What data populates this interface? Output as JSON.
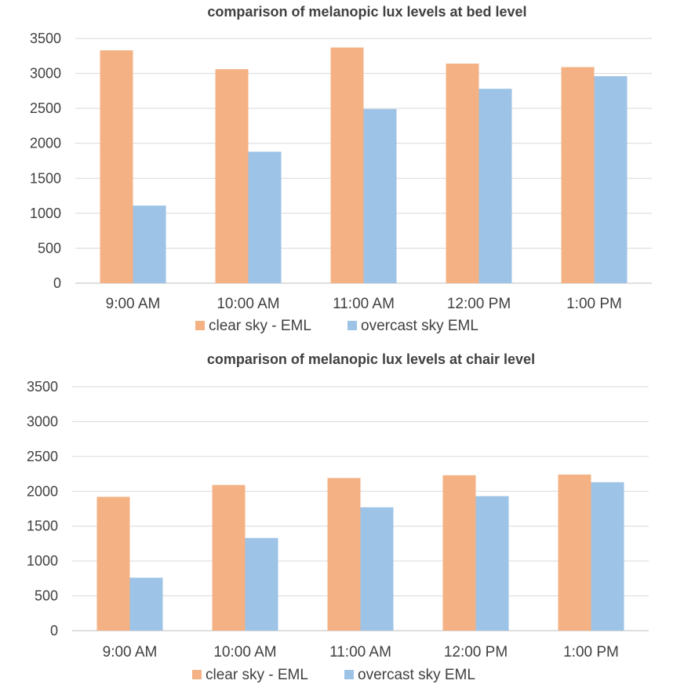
{
  "chart_data": [
    {
      "type": "bar",
      "title": "comparison of melanopic lux levels at bed level",
      "categories": [
        "9:00 AM",
        "10:00 AM",
        "11:00 AM",
        "12:00 PM",
        "1:00 PM"
      ],
      "series": [
        {
          "name": "clear sky - EML",
          "color": "#f4b183",
          "values": [
            3330,
            3060,
            3370,
            3140,
            3090
          ]
        },
        {
          "name": "overcast sky EML",
          "color": "#9dc3e6",
          "values": [
            1110,
            1880,
            2490,
            2780,
            2960
          ]
        }
      ],
      "yticks": [
        0,
        500,
        1000,
        1500,
        2000,
        2500,
        3000,
        3500
      ],
      "ylim": [
        0,
        3500
      ],
      "xlabel": "",
      "ylabel": "",
      "grid": true,
      "legend": "bottom"
    },
    {
      "type": "bar",
      "title": "comparison of melanopic lux levels at chair level",
      "categories": [
        "9:00 AM",
        "10:00 AM",
        "11:00 AM",
        "12:00 PM",
        "1:00 PM"
      ],
      "series": [
        {
          "name": "clear sky - EML",
          "color": "#f4b183",
          "values": [
            1920,
            2090,
            2190,
            2230,
            2240
          ]
        },
        {
          "name": "overcast sky EML",
          "color": "#9dc3e6",
          "values": [
            760,
            1330,
            1770,
            1930,
            2130
          ]
        }
      ],
      "yticks": [
        0,
        500,
        1000,
        1500,
        2000,
        2500,
        3000,
        3500
      ],
      "ylim": [
        0,
        3500
      ],
      "xlabel": "",
      "ylabel": "",
      "grid": true,
      "legend": "bottom"
    }
  ]
}
